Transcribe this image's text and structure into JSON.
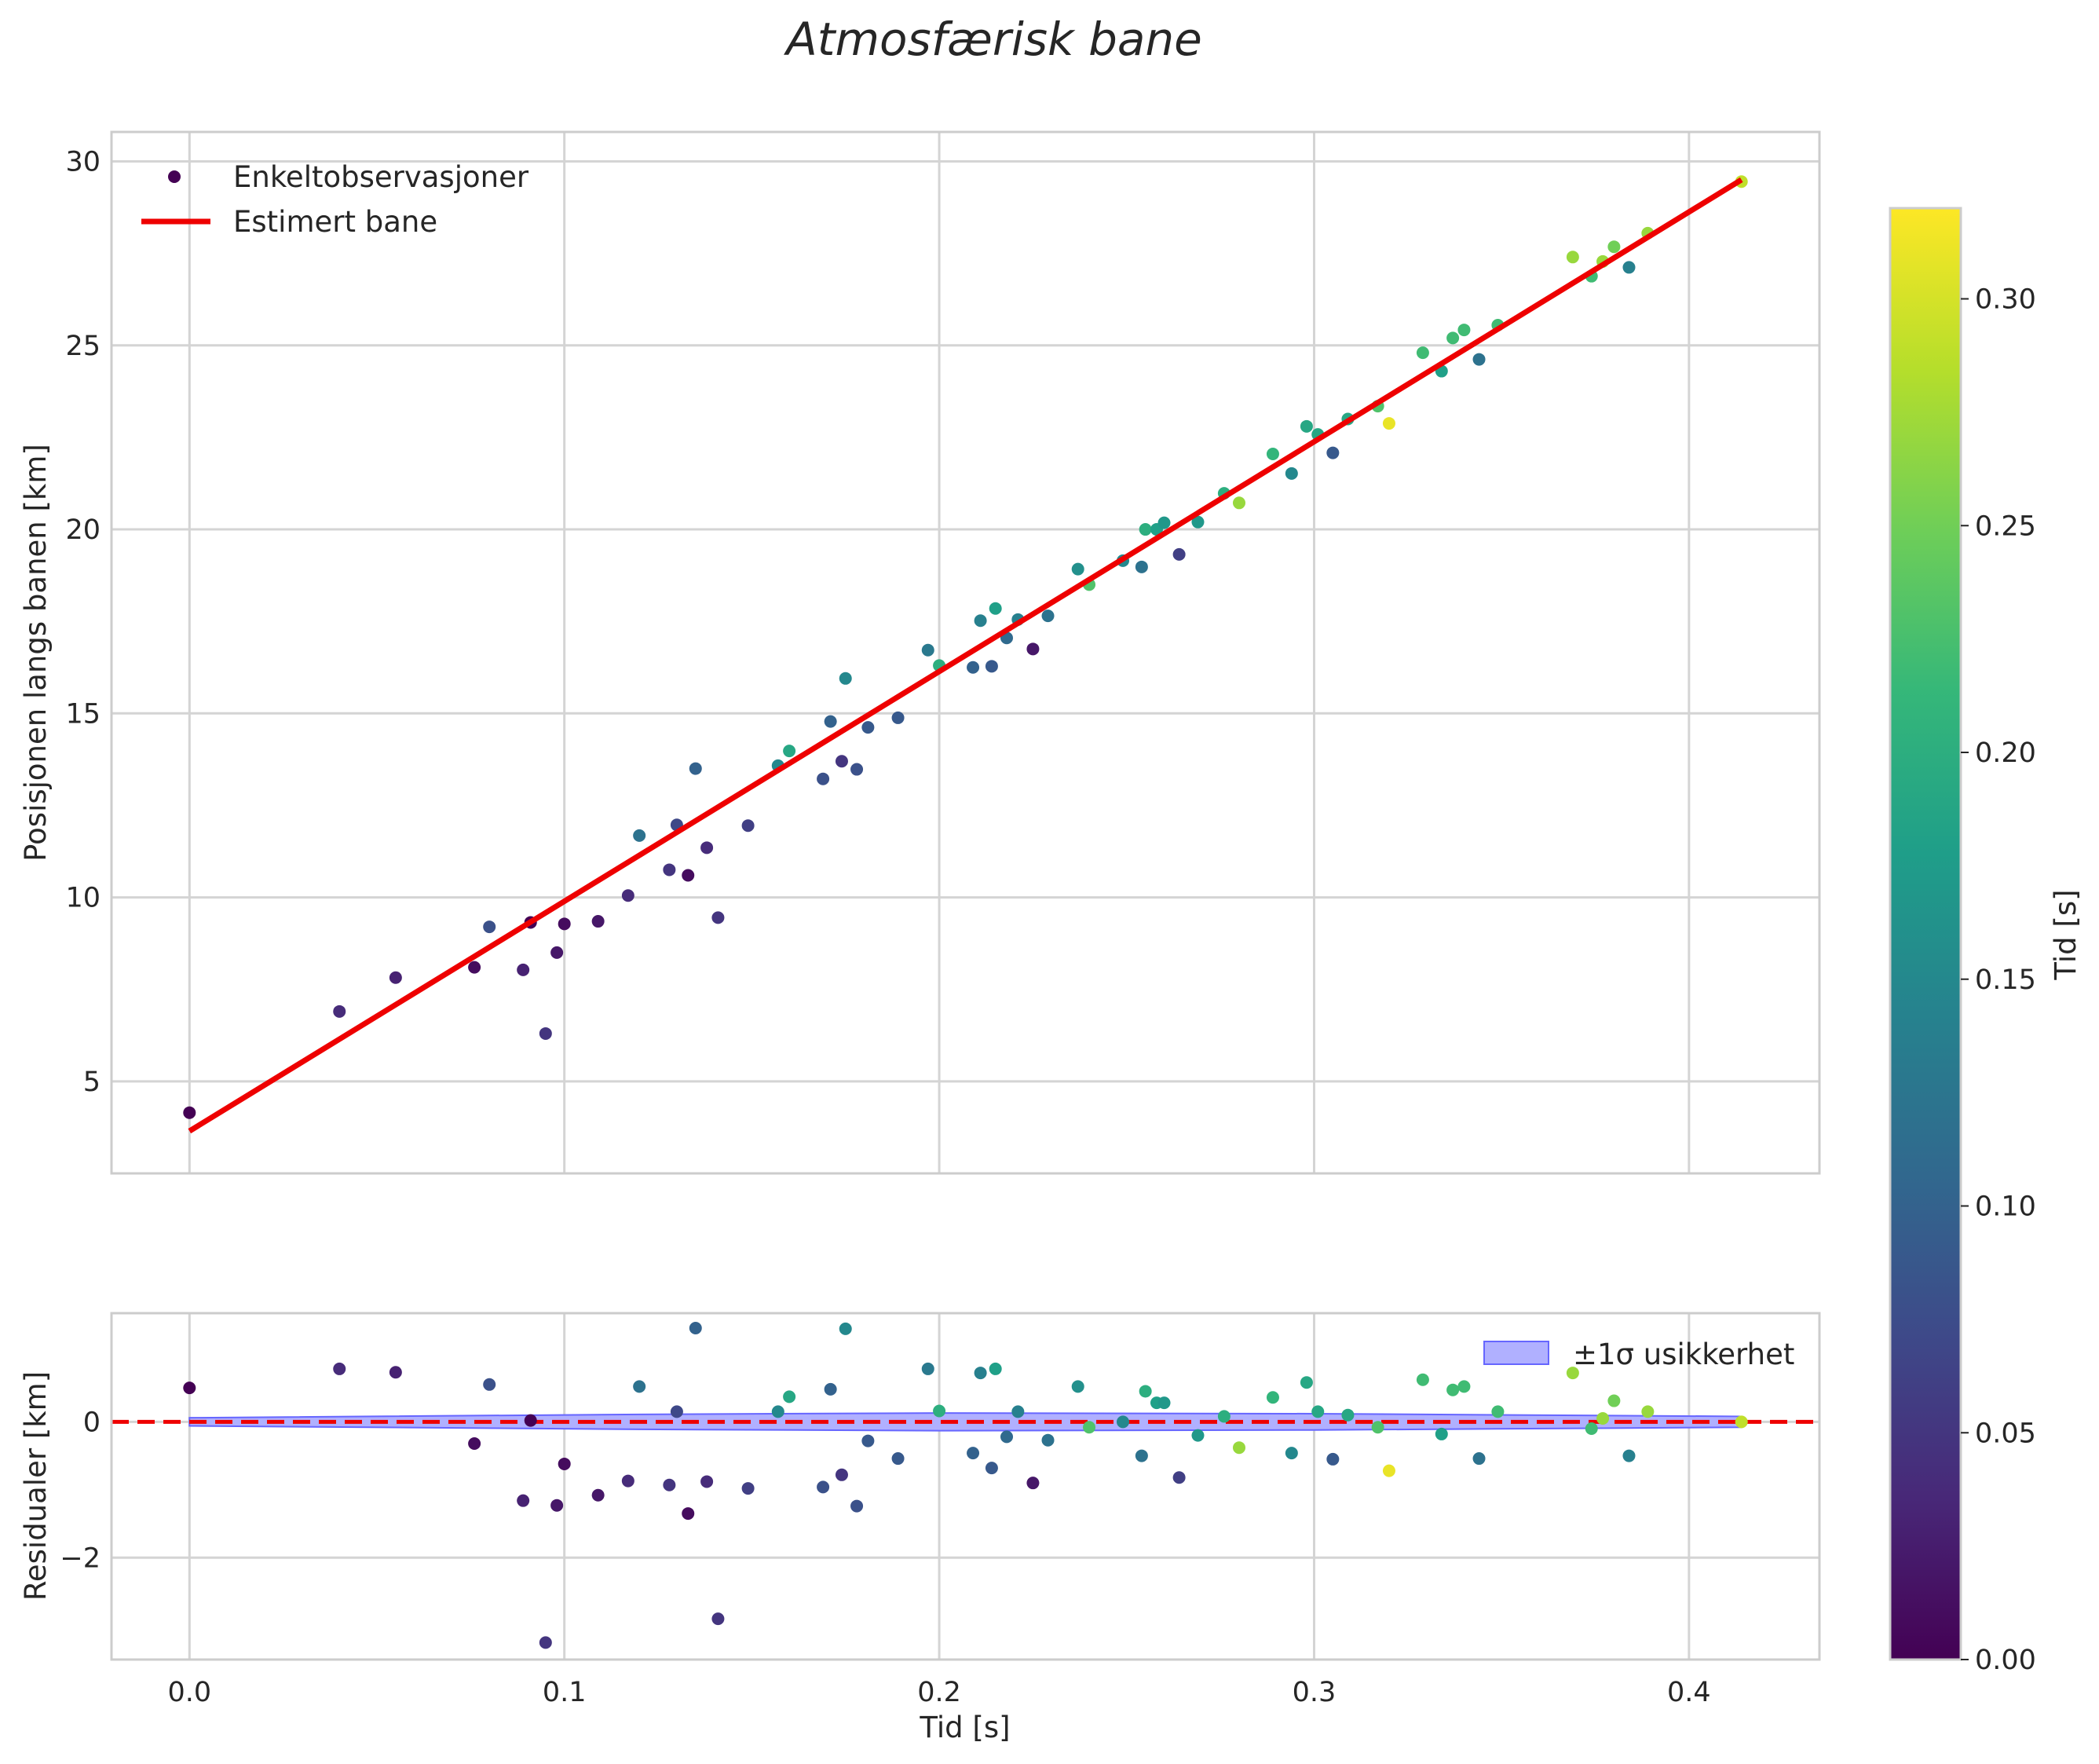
{
  "chart_data": {
    "type": "scatter",
    "title": "Atmosfærisk bane",
    "colorscale": {
      "name": "viridis",
      "label": "Tid [s]",
      "range": [
        0.0,
        0.32
      ],
      "ticks": [
        "0.00",
        "0.05",
        "0.10",
        "0.15",
        "0.20",
        "0.25",
        "0.30"
      ],
      "stops": [
        "#440154",
        "#482878",
        "#3e4989",
        "#31688e",
        "#26828e",
        "#1f9e89",
        "#35b779",
        "#6ece58",
        "#b5de2b",
        "#fde725"
      ]
    },
    "colors": {
      "fit_line": "#ee0000",
      "band_fill": "#b0b0ff",
      "band_edge": "#6666ff",
      "grid": "#d4d4d4"
    },
    "top_panel": {
      "ylabel": "Posisjonen langs banen [km]",
      "xlim": [
        -0.0208,
        0.4348
      ],
      "ylim": [
        2.5,
        30.8
      ],
      "yticks": [
        "5",
        "10",
        "15",
        "20",
        "25",
        "30"
      ],
      "legend": {
        "position": "top-left",
        "scatter_label": "Enkeltobservasjoner",
        "line_label": "Estimert bane"
      },
      "fit_line": {
        "x": [
          0.0,
          0.414
        ],
        "y": [
          3.65,
          29.5
        ]
      }
    },
    "bottom_panel": {
      "ylabel": "Residualer [km]",
      "xlabel": "Tid [s]",
      "xlim": [
        -0.0208,
        0.4348
      ],
      "ylim": [
        -3.5,
        1.6
      ],
      "yticks": [
        "−2",
        "0"
      ],
      "xticks": [
        "0.0",
        "0.1",
        "0.2",
        "0.3",
        "0.4"
      ],
      "legend": {
        "position": "top-right",
        "band_label": "±1σ usikkerhet"
      },
      "zero_line": 0,
      "band": {
        "x": [
          0.0,
          0.12,
          0.2,
          0.3,
          0.414
        ],
        "halfwidth": [
          0.06,
          0.11,
          0.13,
          0.12,
          0.08
        ]
      }
    },
    "points": [
      {
        "t": 0.0,
        "pos": 4.15,
        "res": 0.5,
        "c": 0.0
      },
      {
        "t": 0.04,
        "pos": 6.9,
        "res": 0.78,
        "c": 0.04
      },
      {
        "t": 0.055,
        "pos": 7.82,
        "res": 0.73,
        "c": 0.03
      },
      {
        "t": 0.076,
        "pos": 8.1,
        "res": -0.32,
        "c": 0.01
      },
      {
        "t": 0.08,
        "pos": 9.2,
        "res": 0.55,
        "c": 0.08
      },
      {
        "t": 0.089,
        "pos": 8.03,
        "res": -1.16,
        "c": 0.03
      },
      {
        "t": 0.091,
        "pos": 9.32,
        "res": 0.02,
        "c": 0.0
      },
      {
        "t": 0.095,
        "pos": 6.3,
        "res": -3.25,
        "c": 0.05
      },
      {
        "t": 0.098,
        "pos": 8.5,
        "res": -1.23,
        "c": 0.02
      },
      {
        "t": 0.1,
        "pos": 9.28,
        "res": -0.62,
        "c": 0.01
      },
      {
        "t": 0.109,
        "pos": 9.35,
        "res": -1.08,
        "c": 0.02
      },
      {
        "t": 0.117,
        "pos": 10.05,
        "res": -0.87,
        "c": 0.04
      },
      {
        "t": 0.12,
        "pos": 11.68,
        "res": 0.52,
        "c": 0.12
      },
      {
        "t": 0.128,
        "pos": 10.75,
        "res": -0.93,
        "c": 0.05
      },
      {
        "t": 0.13,
        "pos": 11.97,
        "res": 0.15,
        "c": 0.07
      },
      {
        "t": 0.133,
        "pos": 10.6,
        "res": -1.35,
        "c": 0.01
      },
      {
        "t": 0.135,
        "pos": 13.5,
        "res": 1.38,
        "c": 0.1
      },
      {
        "t": 0.138,
        "pos": 11.35,
        "res": -0.88,
        "c": 0.04
      },
      {
        "t": 0.141,
        "pos": 9.45,
        "res": -2.9,
        "c": 0.05
      },
      {
        "t": 0.149,
        "pos": 11.95,
        "res": -0.98,
        "c": 0.06
      },
      {
        "t": 0.157,
        "pos": 13.58,
        "res": 0.15,
        "c": 0.15
      },
      {
        "t": 0.16,
        "pos": 13.98,
        "res": 0.37,
        "c": 0.19
      },
      {
        "t": 0.169,
        "pos": 13.22,
        "res": -0.96,
        "c": 0.08
      },
      {
        "t": 0.171,
        "pos": 14.78,
        "res": 0.48,
        "c": 0.1
      },
      {
        "t": 0.174,
        "pos": 13.7,
        "res": -0.78,
        "c": 0.05
      },
      {
        "t": 0.175,
        "pos": 15.95,
        "res": 1.37,
        "c": 0.15
      },
      {
        "t": 0.178,
        "pos": 13.48,
        "res": -1.24,
        "c": 0.08
      },
      {
        "t": 0.181,
        "pos": 14.62,
        "res": -0.28,
        "c": 0.09
      },
      {
        "t": 0.189,
        "pos": 14.88,
        "res": -0.54,
        "c": 0.09
      },
      {
        "t": 0.197,
        "pos": 16.72,
        "res": 0.78,
        "c": 0.13
      },
      {
        "t": 0.2,
        "pos": 16.3,
        "res": 0.16,
        "c": 0.2
      },
      {
        "t": 0.209,
        "pos": 16.25,
        "res": -0.46,
        "c": 0.1
      },
      {
        "t": 0.211,
        "pos": 17.52,
        "res": 0.72,
        "c": 0.14
      },
      {
        "t": 0.214,
        "pos": 16.28,
        "res": -0.68,
        "c": 0.09
      },
      {
        "t": 0.215,
        "pos": 17.85,
        "res": 0.78,
        "c": 0.18
      },
      {
        "t": 0.218,
        "pos": 17.05,
        "res": -0.22,
        "c": 0.11
      },
      {
        "t": 0.221,
        "pos": 17.55,
        "res": 0.15,
        "c": 0.14
      },
      {
        "t": 0.225,
        "pos": 16.75,
        "res": -0.9,
        "c": 0.02
      },
      {
        "t": 0.229,
        "pos": 17.65,
        "res": -0.27,
        "c": 0.12
      },
      {
        "t": 0.237,
        "pos": 18.92,
        "res": 0.52,
        "c": 0.16
      },
      {
        "t": 0.24,
        "pos": 18.5,
        "res": -0.08,
        "c": 0.23
      },
      {
        "t": 0.249,
        "pos": 19.15,
        "res": 0.0,
        "c": 0.15
      },
      {
        "t": 0.254,
        "pos": 18.98,
        "res": -0.5,
        "c": 0.12
      },
      {
        "t": 0.255,
        "pos": 20.0,
        "res": 0.45,
        "c": 0.2
      },
      {
        "t": 0.258,
        "pos": 20.0,
        "res": 0.28,
        "c": 0.18
      },
      {
        "t": 0.26,
        "pos": 20.18,
        "res": 0.28,
        "c": 0.17
      },
      {
        "t": 0.264,
        "pos": 19.32,
        "res": -0.82,
        "c": 0.06
      },
      {
        "t": 0.269,
        "pos": 20.2,
        "res": -0.2,
        "c": 0.17
      },
      {
        "t": 0.276,
        "pos": 20.98,
        "res": 0.08,
        "c": 0.2
      },
      {
        "t": 0.28,
        "pos": 20.72,
        "res": -0.38,
        "c": 0.27
      },
      {
        "t": 0.289,
        "pos": 22.05,
        "res": 0.36,
        "c": 0.21
      },
      {
        "t": 0.294,
        "pos": 21.52,
        "res": -0.46,
        "c": 0.15
      },
      {
        "t": 0.298,
        "pos": 22.8,
        "res": 0.58,
        "c": 0.19
      },
      {
        "t": 0.301,
        "pos": 22.58,
        "res": 0.15,
        "c": 0.19
      },
      {
        "t": 0.305,
        "pos": 22.08,
        "res": -0.55,
        "c": 0.09
      },
      {
        "t": 0.309,
        "pos": 23.0,
        "res": 0.1,
        "c": 0.19
      },
      {
        "t": 0.317,
        "pos": 23.35,
        "res": -0.08,
        "c": 0.23
      },
      {
        "t": 0.32,
        "pos": 22.88,
        "res": -0.72,
        "c": 0.31
      },
      {
        "t": 0.329,
        "pos": 24.8,
        "res": 0.62,
        "c": 0.22
      },
      {
        "t": 0.334,
        "pos": 24.3,
        "res": -0.18,
        "c": 0.18
      },
      {
        "t": 0.337,
        "pos": 25.2,
        "res": 0.47,
        "c": 0.22
      },
      {
        "t": 0.34,
        "pos": 25.42,
        "res": 0.52,
        "c": 0.22
      },
      {
        "t": 0.344,
        "pos": 24.62,
        "res": -0.54,
        "c": 0.12
      },
      {
        "t": 0.349,
        "pos": 25.55,
        "res": 0.15,
        "c": 0.22
      },
      {
        "t": 0.369,
        "pos": 27.4,
        "res": 0.72,
        "c": 0.27
      },
      {
        "t": 0.374,
        "pos": 26.88,
        "res": -0.1,
        "c": 0.22
      },
      {
        "t": 0.377,
        "pos": 27.28,
        "res": 0.05,
        "c": 0.27
      },
      {
        "t": 0.38,
        "pos": 27.68,
        "res": 0.31,
        "c": 0.25
      },
      {
        "t": 0.384,
        "pos": 27.12,
        "res": -0.5,
        "c": 0.14
      },
      {
        "t": 0.389,
        "pos": 28.05,
        "res": 0.15,
        "c": 0.27
      },
      {
        "t": 0.414,
        "pos": 29.45,
        "res": 0.0,
        "c": 0.29
      }
    ]
  }
}
